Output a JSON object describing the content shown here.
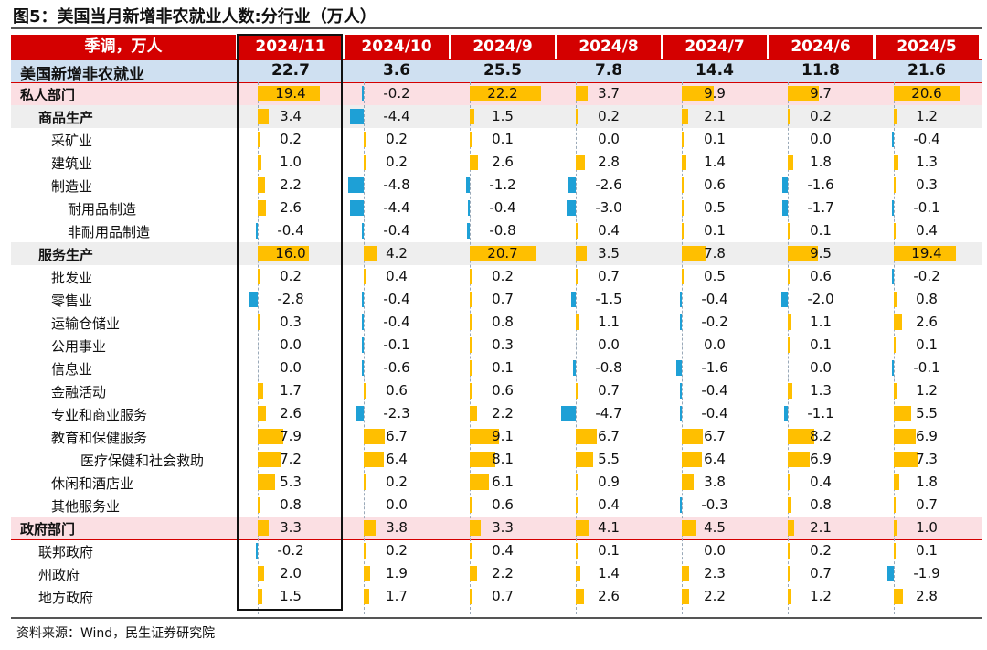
{
  "title": "图5：美国当月新增非农就业人数:分行业（万人）",
  "source": "资料来源：Wind，民生证券研究院",
  "colors": {
    "header": "#d40000",
    "positive": "#ffbf00",
    "negative": "#1ea0d6",
    "total_row": "#cfe0f1",
    "pink_row": "#fbdfe3",
    "gray_row": "#eeeeee"
  },
  "chart_data": {
    "type": "table",
    "corner_label": "季调，万人",
    "months": [
      "2024/11",
      "2024/10",
      "2024/9",
      "2024/8",
      "2024/7",
      "2024/6",
      "2024/5"
    ],
    "rows": [
      {
        "label": "美国新增非农就业",
        "indent": 0,
        "style": "total",
        "values": [
          22.7,
          3.6,
          25.5,
          7.8,
          14.4,
          11.8,
          21.6
        ]
      },
      {
        "label": "私人部门",
        "indent": 0,
        "style": "pink",
        "values": [
          19.4,
          -0.2,
          22.2,
          3.7,
          9.9,
          9.7,
          20.6
        ]
      },
      {
        "label": "商品生产",
        "indent": 1,
        "style": "gray",
        "values": [
          3.4,
          -4.4,
          1.5,
          0.2,
          2.1,
          0.2,
          1.2
        ]
      },
      {
        "label": "采矿业",
        "indent": 2,
        "style": "none",
        "values": [
          0.2,
          0.2,
          0.1,
          0.0,
          0.1,
          0.0,
          -0.4
        ]
      },
      {
        "label": "建筑业",
        "indent": 2,
        "style": "none",
        "values": [
          1.0,
          0.2,
          2.6,
          2.8,
          1.4,
          1.8,
          1.3
        ]
      },
      {
        "label": "制造业",
        "indent": 2,
        "style": "none",
        "values": [
          2.2,
          -4.8,
          -1.2,
          -2.6,
          0.6,
          -1.6,
          0.3
        ]
      },
      {
        "label": "耐用品制造",
        "indent": 3,
        "style": "none",
        "values": [
          2.6,
          -4.4,
          -0.4,
          -3.0,
          0.5,
          -1.7,
          -0.1
        ]
      },
      {
        "label": "非耐用品制造",
        "indent": 3,
        "style": "none",
        "values": [
          -0.4,
          -0.4,
          -0.8,
          0.4,
          0.1,
          0.1,
          0.4
        ]
      },
      {
        "label": "服务生产",
        "indent": 1,
        "style": "gray",
        "values": [
          16.0,
          4.2,
          20.7,
          3.5,
          7.8,
          9.5,
          19.4
        ]
      },
      {
        "label": "批发业",
        "indent": 2,
        "style": "none",
        "values": [
          0.2,
          0.4,
          0.2,
          0.7,
          0.5,
          0.6,
          -0.2
        ]
      },
      {
        "label": "零售业",
        "indent": 2,
        "style": "none",
        "values": [
          -2.8,
          -0.4,
          0.7,
          -1.5,
          -0.4,
          -2.0,
          0.8
        ]
      },
      {
        "label": "运输仓储业",
        "indent": 2,
        "style": "none",
        "values": [
          0.3,
          -0.4,
          0.8,
          1.1,
          -0.2,
          1.1,
          2.6
        ]
      },
      {
        "label": "公用事业",
        "indent": 2,
        "style": "none",
        "values": [
          0.0,
          -0.1,
          0.3,
          0.0,
          0.0,
          0.1,
          0.1
        ]
      },
      {
        "label": "信息业",
        "indent": 2,
        "style": "none",
        "values": [
          0.0,
          -0.6,
          0.1,
          -0.8,
          -1.6,
          0.0,
          -0.1
        ]
      },
      {
        "label": "金融活动",
        "indent": 2,
        "style": "none",
        "values": [
          1.7,
          0.6,
          0.6,
          0.7,
          -0.4,
          1.3,
          1.2
        ]
      },
      {
        "label": "专业和商业服务",
        "indent": 2,
        "style": "none",
        "values": [
          2.6,
          -2.3,
          2.2,
          -4.7,
          -0.4,
          -1.1,
          5.5
        ]
      },
      {
        "label": "教育和保健服务",
        "indent": 2,
        "style": "none",
        "values": [
          7.9,
          6.7,
          9.1,
          6.7,
          6.7,
          8.2,
          6.9
        ]
      },
      {
        "label": "医疗保健和社会救助",
        "indent": 4,
        "style": "none",
        "values": [
          7.2,
          6.4,
          8.1,
          5.5,
          6.4,
          6.9,
          7.3
        ]
      },
      {
        "label": "休闲和酒店业",
        "indent": 2,
        "style": "none",
        "values": [
          5.3,
          0.2,
          6.1,
          0.9,
          3.8,
          0.4,
          1.8
        ]
      },
      {
        "label": "其他服务业",
        "indent": 2,
        "style": "none",
        "values": [
          0.8,
          0.0,
          0.6,
          0.4,
          -0.3,
          0.8,
          0.7
        ]
      },
      {
        "label": "政府部门",
        "indent": 0,
        "style": "pink",
        "values": [
          3.3,
          3.8,
          3.3,
          4.1,
          4.5,
          2.1,
          1.0
        ]
      },
      {
        "label": "联邦政府",
        "indent": 1,
        "style": "none",
        "values": [
          -0.2,
          0.2,
          0.4,
          0.1,
          0.0,
          0.2,
          0.1
        ]
      },
      {
        "label": "州政府",
        "indent": 1,
        "style": "none",
        "values": [
          2.0,
          1.9,
          2.2,
          1.4,
          2.3,
          0.7,
          -1.9
        ]
      },
      {
        "label": "地方政府",
        "indent": 1,
        "style": "none",
        "values": [
          1.5,
          1.7,
          0.7,
          2.6,
          2.2,
          1.2,
          2.8
        ]
      }
    ]
  }
}
